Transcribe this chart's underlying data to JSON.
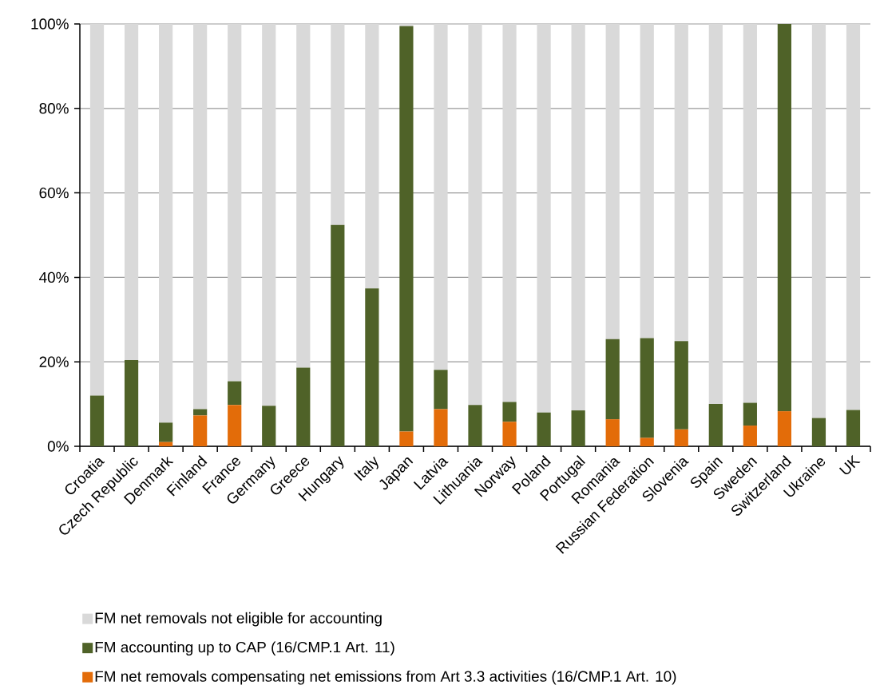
{
  "chart_data": {
    "type": "bar",
    "stacked": true,
    "categories": [
      "Croatia",
      "Czech Republic",
      "Denmark",
      "Finland",
      "France",
      "Germany",
      "Greece",
      "Hungary",
      "Italy",
      "Japan",
      "Latvia",
      "Lithuania",
      "Norway",
      "Poland",
      "Portugal",
      "Romania",
      "Russian Federation",
      "Slovenia",
      "Spain",
      "Sweden",
      "Switzerland",
      "Ukraine",
      "UK"
    ],
    "series": [
      {
        "name": "FM net removals compensating net emissions from Art 3.3 activities (16/CMP.1 Art. 10)",
        "color": "#e36c09",
        "values": [
          0,
          0,
          1.0,
          7.3,
          9.8,
          0,
          0,
          0,
          0,
          3.5,
          8.8,
          0,
          5.8,
          0,
          0,
          6.4,
          2.0,
          4.0,
          0,
          4.9,
          8.3,
          0,
          0
        ]
      },
      {
        "name": "FM accounting up to CAP (16/CMP.1 Art. 11)",
        "color": "#4f6228",
        "values": [
          12.0,
          20.4,
          4.6,
          1.5,
          5.6,
          9.6,
          18.6,
          52.4,
          37.4,
          96.0,
          9.3,
          9.8,
          4.7,
          8.0,
          8.5,
          19.0,
          23.6,
          20.9,
          10.0,
          5.4,
          91.7,
          6.7,
          8.6
        ]
      },
      {
        "name": "FM net removals not eligible for accounting",
        "color": "#d9d9d9",
        "values": [
          88.0,
          79.6,
          94.4,
          91.2,
          84.6,
          90.4,
          81.4,
          47.6,
          62.6,
          0.5,
          81.9,
          90.2,
          89.5,
          92.0,
          91.5,
          74.6,
          74.4,
          75.1,
          90.0,
          89.7,
          0,
          93.3,
          91.4
        ]
      }
    ],
    "ylim": [
      0,
      100
    ],
    "yticks": [
      {
        "value": 0,
        "label": "0%"
      },
      {
        "value": 20,
        "label": "20%"
      },
      {
        "value": 40,
        "label": "40%"
      },
      {
        "value": 60,
        "label": "60%"
      },
      {
        "value": 80,
        "label": "80%"
      },
      {
        "value": 100,
        "label": "100%"
      }
    ],
    "grid": "y",
    "legend": "bottom"
  }
}
